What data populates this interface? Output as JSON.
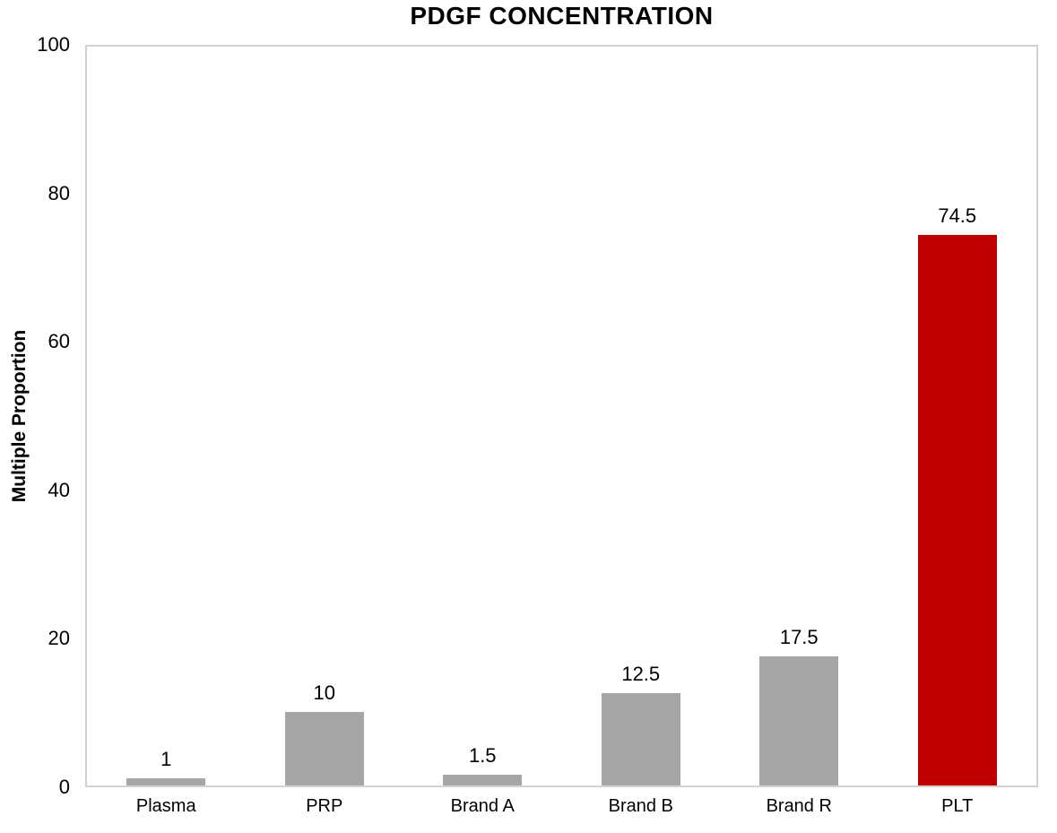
{
  "chart_data": {
    "type": "bar",
    "title": "PDGF CONCENTRATION",
    "xlabel": "",
    "ylabel": "Multiple Proportion",
    "categories": [
      "Plasma",
      "PRP",
      "Brand A",
      "Brand B",
      "Brand R",
      "PLT"
    ],
    "values": [
      1,
      10,
      1.5,
      12.5,
      17.5,
      74.5
    ],
    "data_labels": [
      "1",
      "10",
      "1.5",
      "12.5",
      "17.5",
      "74.5"
    ],
    "bar_colors": [
      "#A6A6A6",
      "#A6A6A6",
      "#A6A6A6",
      "#A6A6A6",
      "#A6A6A6",
      "#C00000"
    ],
    "ylim": [
      0,
      100
    ],
    "ytick_step": 20,
    "ytick_labels": [
      "0",
      "20",
      "40",
      "60",
      "80",
      "100"
    ],
    "grid": false,
    "legend_position": "none",
    "colors": {
      "default_bar": "#A6A6A6",
      "highlight_bar": "#C00000",
      "plot_border": "#D2D2D2",
      "text": "#000000",
      "background": "#FFFFFF"
    }
  }
}
